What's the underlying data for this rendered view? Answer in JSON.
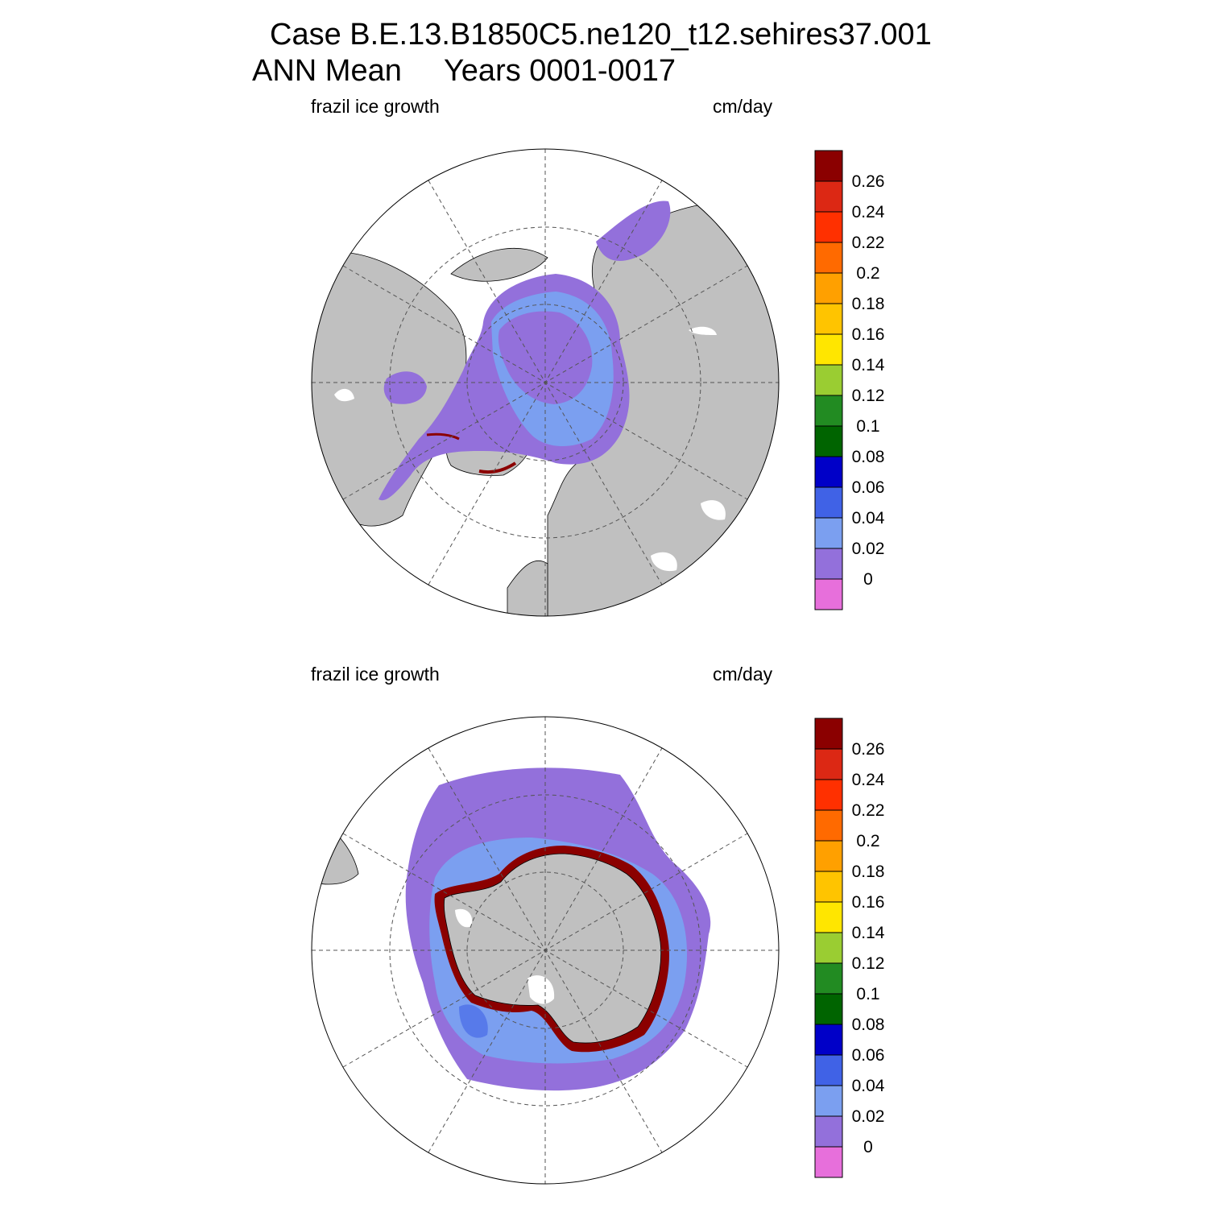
{
  "header": {
    "case_line": "Case B.E.13.B1850C5.ne120_t12.sehires37.001",
    "period_line": "ANN Mean     Years 0001-0017"
  },
  "panels": [
    {
      "id": "north",
      "left_label": "frazil ice growth",
      "right_label": "cm/day"
    },
    {
      "id": "south",
      "left_label": "frazil ice growth",
      "right_label": "cm/day"
    }
  ],
  "colorbar": {
    "levels": [
      "0",
      "0.02",
      "0.04",
      "0.06",
      "0.08",
      "0.1",
      "0.12",
      "0.14",
      "0.16",
      "0.18",
      "0.2",
      "0.22",
      "0.24",
      "0.26"
    ],
    "colors_bottom_to_top": [
      "#e76fdb",
      "#9370db",
      "#7b9ff0",
      "#4062e6",
      "#0000c8",
      "#006400",
      "#228b22",
      "#9acd32",
      "#ffe600",
      "#ffc400",
      "#ffa000",
      "#ff6a00",
      "#ff3000",
      "#dc2814",
      "#8b0000"
    ]
  },
  "map_colors": {
    "land": "#c0c0c0",
    "ocean": "#ffffff",
    "ice_base": "#9370db",
    "ice_light": "#7b9ff0",
    "ice_mid": "#4062e6",
    "edge_hi": "#8b0000"
  }
}
